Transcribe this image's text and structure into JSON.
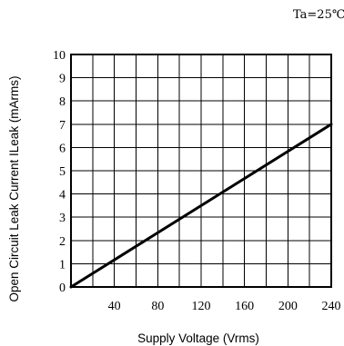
{
  "chart_data": {
    "type": "line",
    "annotation": "Ta=25℃",
    "xlabel": "Supply Voltage (Vrms)",
    "ylabel": "Open Circuit Leak Current ILeak (mArms)",
    "xlim": [
      0,
      240
    ],
    "ylim": [
      0,
      10
    ],
    "x_ticks": [
      40,
      80,
      120,
      160,
      200,
      240
    ],
    "y_ticks": [
      0,
      1,
      2,
      3,
      4,
      5,
      6,
      7,
      8,
      9,
      10
    ],
    "grid": true,
    "series": [
      {
        "x": [
          0,
          240
        ],
        "y": [
          0,
          7.0
        ]
      }
    ]
  }
}
